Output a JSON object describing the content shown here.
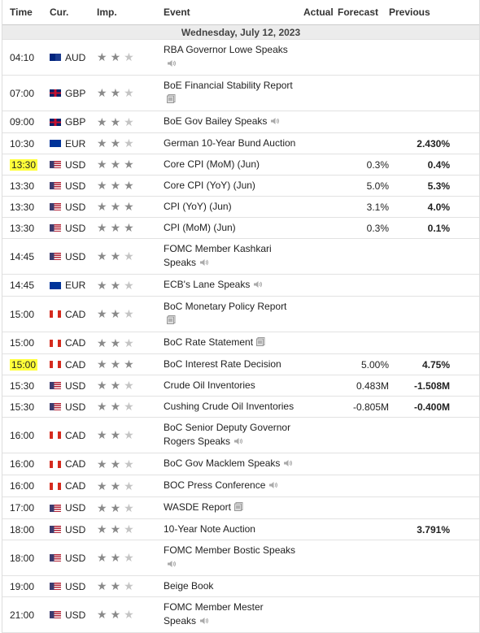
{
  "header": {
    "time": "Time",
    "currency": "Cur.",
    "importance": "Imp.",
    "event": "Event",
    "actual": "Actual",
    "forecast": "Forecast",
    "previous": "Previous"
  },
  "date": "Wednesday, July 12, 2023",
  "rows": [
    {
      "time": "04:10",
      "currency": "AUD",
      "importance": 2,
      "event": "RBA Governor Lowe Speaks",
      "icon": "speech"
    },
    {
      "time": "07:00",
      "currency": "GBP",
      "importance": 2,
      "event": "BoE Financial Stability Report",
      "icon": "report"
    },
    {
      "time": "09:00",
      "currency": "GBP",
      "importance": 2,
      "event": "BoE Gov Bailey Speaks",
      "icon": "speech"
    },
    {
      "time": "10:30",
      "currency": "EUR",
      "importance": 2,
      "event": "German 10-Year Bund Auction",
      "previous": "2.430%"
    },
    {
      "time": "13:30",
      "currency": "USD",
      "importance": 3,
      "event": "Core CPI (MoM) (Jun)",
      "forecast": "0.3%",
      "previous": "0.4%",
      "highlight": true
    },
    {
      "time": "13:30",
      "currency": "USD",
      "importance": 3,
      "event": "Core CPI (YoY) (Jun)",
      "forecast": "5.0%",
      "previous": "5.3%"
    },
    {
      "time": "13:30",
      "currency": "USD",
      "importance": 3,
      "event": "CPI (YoY) (Jun)",
      "forecast": "3.1%",
      "previous": "4.0%"
    },
    {
      "time": "13:30",
      "currency": "USD",
      "importance": 3,
      "event": "CPI (MoM) (Jun)",
      "forecast": "0.3%",
      "previous": "0.1%"
    },
    {
      "time": "14:45",
      "currency": "USD",
      "importance": 2,
      "event": "FOMC Member Kashkari Speaks",
      "icon": "speech"
    },
    {
      "time": "14:45",
      "currency": "EUR",
      "importance": 2,
      "event": "ECB's Lane Speaks",
      "icon": "speech"
    },
    {
      "time": "15:00",
      "currency": "CAD",
      "importance": 2,
      "event": "BoC Monetary Policy Report",
      "icon": "report"
    },
    {
      "time": "15:00",
      "currency": "CAD",
      "importance": 2,
      "event": "BoC Rate Statement",
      "icon": "report"
    },
    {
      "time": "15:00",
      "currency": "CAD",
      "importance": 3,
      "event": "BoC Interest Rate Decision",
      "forecast": "5.00%",
      "previous": "4.75%",
      "highlight": true
    },
    {
      "time": "15:30",
      "currency": "USD",
      "importance": 2,
      "event": "Crude Oil Inventories",
      "forecast": "0.483M",
      "previous": "-1.508M"
    },
    {
      "time": "15:30",
      "currency": "USD",
      "importance": 2,
      "event": "Cushing Crude Oil Inventories",
      "forecast": "-0.805M",
      "previous": "-0.400M"
    },
    {
      "time": "16:00",
      "currency": "CAD",
      "importance": 2,
      "event": "BoC Senior Deputy Governor Rogers Speaks",
      "icon": "speech"
    },
    {
      "time": "16:00",
      "currency": "CAD",
      "importance": 2,
      "event": "BoC Gov Macklem Speaks",
      "icon": "speech"
    },
    {
      "time": "16:00",
      "currency": "CAD",
      "importance": 2,
      "event": "BOC Press Conference",
      "icon": "speech"
    },
    {
      "time": "17:00",
      "currency": "USD",
      "importance": 2,
      "event": "WASDE Report",
      "icon": "report"
    },
    {
      "time": "18:00",
      "currency": "USD",
      "importance": 2,
      "event": "10-Year Note Auction",
      "previous": "3.791%"
    },
    {
      "time": "18:00",
      "currency": "USD",
      "importance": 2,
      "event": "FOMC Member Bostic Speaks",
      "icon": "speech"
    },
    {
      "time": "19:00",
      "currency": "USD",
      "importance": 2,
      "event": "Beige Book"
    },
    {
      "time": "21:00",
      "currency": "USD",
      "importance": 2,
      "event": "FOMC Member Mester Speaks",
      "icon": "speech"
    }
  ]
}
